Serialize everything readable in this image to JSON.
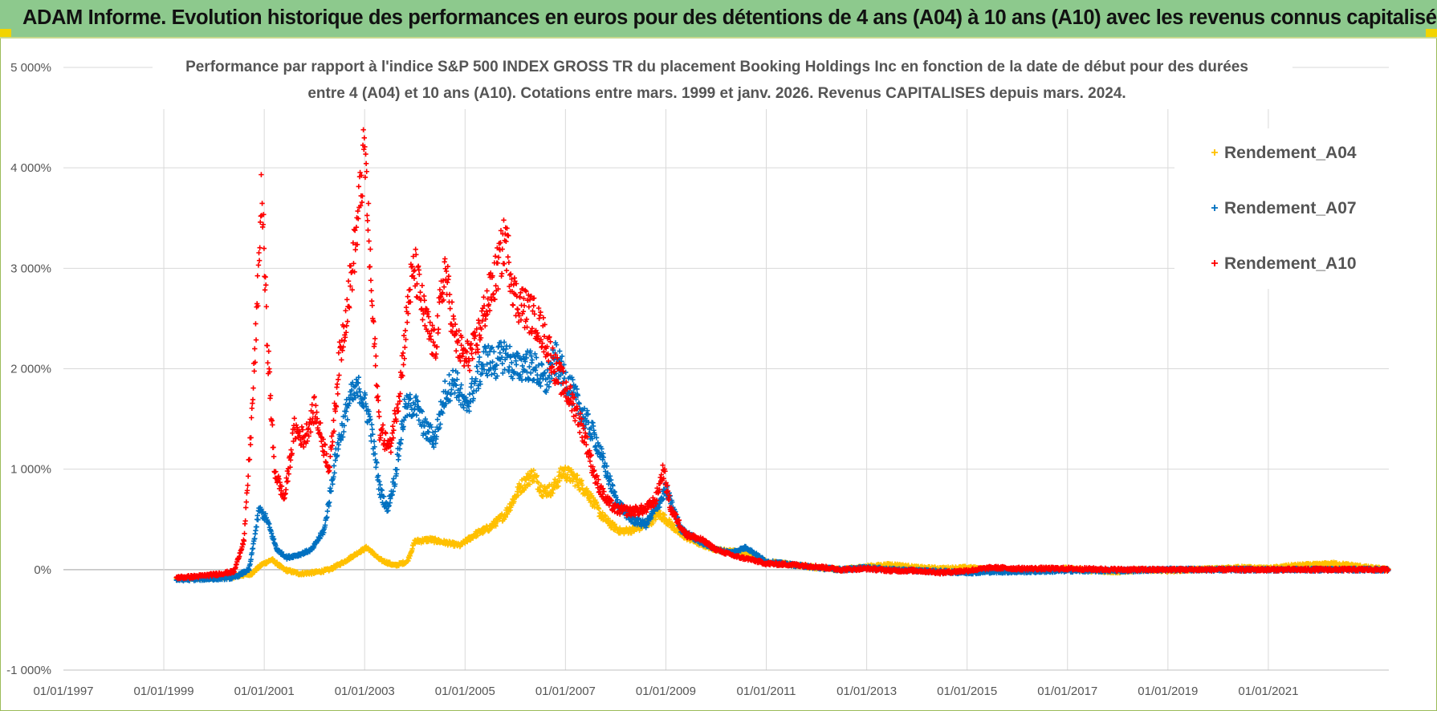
{
  "header": {
    "title": "ADAM Informe. Evolution historique des performances en euros pour des détentions de 4 ans (A04) à 10 ans (A10) avec les revenus connus capitalisés"
  },
  "colors": {
    "header_bg": "#8dc98d",
    "A04": "#ffc000",
    "A07": "#0070c0",
    "A10": "#ff0000",
    "grid": "#d9d9d9",
    "axis": "#bfbfbf"
  },
  "chart_data": {
    "type": "scatter",
    "title_line1": "Performance par rapport à l'indice S&P 500 INDEX GROSS TR  du placement Booking Holdings Inc en fonction de la date de début pour des durées",
    "title_line2": "entre 4 (A04) et 10 ans (A10).  Cotations entre mars. 1999 et janv. 2026.  Revenus CAPITALISES depuis mars. 2024.",
    "xlabel": "",
    "ylabel": "",
    "x_range": [
      1997.0,
      2023.4
    ],
    "ylim": [
      -1000,
      5000
    ],
    "y_ticks": [
      -1000,
      0,
      1000,
      2000,
      3000,
      4000,
      5000
    ],
    "y_tick_labels": [
      "-1 000%",
      "0%",
      "1 000%",
      "2 000%",
      "3 000%",
      "4 000%",
      "5 000%"
    ],
    "x_ticks": [
      1997,
      1999,
      2001,
      2003,
      2005,
      2007,
      2009,
      2011,
      2013,
      2015,
      2017,
      2019,
      2021
    ],
    "x_tick_labels": [
      "01/01/1997",
      "01/01/1999",
      "01/01/2001",
      "01/01/2003",
      "01/01/2005",
      "01/01/2007",
      "01/01/2009",
      "01/01/2011",
      "01/01/2013",
      "01/01/2015",
      "01/01/2017",
      "01/01/2019",
      "01/01/2021"
    ],
    "legend_position": "top-right",
    "series": [
      {
        "name": "Rendement_A04",
        "x": [
          1999.25,
          1999.6,
          2000.0,
          2000.4,
          2000.75,
          2000.95,
          2001.15,
          2001.4,
          2001.7,
          2002.0,
          2002.3,
          2002.6,
          2002.9,
          2003.05,
          2003.3,
          2003.6,
          2003.85,
          2004.0,
          2004.3,
          2004.6,
          2004.9,
          2005.2,
          2005.5,
          2005.8,
          2006.1,
          2006.35,
          2006.55,
          2006.75,
          2006.95,
          2007.2,
          2007.45,
          2007.7,
          2007.9,
          2008.1,
          2008.4,
          2008.7,
          2008.85,
          2009.0,
          2009.3,
          2009.7,
          2010.0,
          2010.4,
          2010.7,
          2011.0,
          2011.5,
          2012.0,
          2012.5,
          2013.0,
          2013.5,
          2014.0,
          2014.5,
          2015.0,
          2015.5,
          2016.0,
          2016.5,
          2017.0,
          2017.5,
          2018.0,
          2018.5,
          2019.0,
          2019.5,
          2020.0,
          2020.5,
          2021.0,
          2021.5,
          2022.0,
          2022.3,
          2022.7,
          2023.0,
          2023.4
        ],
        "values": [
          -90,
          -85,
          -80,
          -70,
          -40,
          50,
          100,
          0,
          -40,
          -30,
          0,
          80,
          180,
          220,
          100,
          40,
          80,
          280,
          300,
          270,
          240,
          350,
          420,
          550,
          820,
          950,
          780,
          800,
          980,
          900,
          760,
          550,
          450,
          380,
          400,
          480,
          560,
          500,
          350,
          250,
          200,
          180,
          150,
          80,
          50,
          20,
          0,
          30,
          50,
          20,
          10,
          20,
          0,
          -10,
          0,
          10,
          -10,
          -20,
          0,
          -10,
          0,
          10,
          20,
          10,
          40,
          50,
          60,
          40,
          20,
          0
        ]
      },
      {
        "name": "Rendement_A07",
        "x": [
          1999.25,
          1999.6,
          2000.0,
          2000.4,
          2000.7,
          2000.9,
          2001.05,
          2001.25,
          2001.45,
          2001.7,
          2001.95,
          2002.2,
          2002.45,
          2002.7,
          2002.9,
          2003.1,
          2003.3,
          2003.45,
          2003.6,
          2003.8,
          2004.0,
          2004.2,
          2004.4,
          2004.6,
          2004.8,
          2005.0,
          2005.2,
          2005.4,
          2005.6,
          2005.8,
          2006.0,
          2006.2,
          2006.4,
          2006.6,
          2006.8,
          2007.0,
          2007.2,
          2007.4,
          2007.6,
          2007.8,
          2008.0,
          2008.3,
          2008.6,
          2008.8,
          2009.0,
          2009.3,
          2009.6,
          2010.0,
          2010.3,
          2010.6,
          2011.0,
          2011.5,
          2012.0,
          2012.5,
          2013.0,
          2013.5,
          2014.0,
          2014.5,
          2015.0,
          2015.5,
          2016.0,
          2017.0,
          2018.0,
          2019.0,
          2020.0,
          2021.0,
          2022.0,
          2023.4
        ],
        "values": [
          -100,
          -95,
          -90,
          -80,
          0,
          600,
          500,
          200,
          120,
          150,
          200,
          400,
          1200,
          1700,
          1800,
          1500,
          800,
          600,
          900,
          1600,
          1650,
          1400,
          1300,
          1750,
          1900,
          1600,
          1850,
          2100,
          2050,
          2150,
          2000,
          2050,
          2000,
          1850,
          2100,
          1900,
          1700,
          1500,
          1300,
          1000,
          700,
          500,
          450,
          600,
          800,
          400,
          300,
          200,
          170,
          220,
          80,
          50,
          20,
          0,
          20,
          0,
          -10,
          -20,
          -30,
          -20,
          -20,
          -10,
          -10,
          0,
          0,
          0,
          0,
          0
        ]
      },
      {
        "name": "Rendement_A10",
        "x": [
          1999.25,
          1999.6,
          2000.0,
          2000.4,
          2000.6,
          2000.75,
          2000.85,
          2000.95,
          2001.05,
          2001.2,
          2001.4,
          2001.6,
          2001.8,
          2002.0,
          2002.3,
          2002.5,
          2002.7,
          2002.85,
          2003.0,
          2003.15,
          2003.3,
          2003.5,
          2003.7,
          2003.9,
          2004.0,
          2004.2,
          2004.4,
          2004.6,
          2004.8,
          2005.0,
          2005.2,
          2005.4,
          2005.6,
          2005.8,
          2006.0,
          2006.2,
          2006.4,
          2006.6,
          2006.8,
          2007.0,
          2007.2,
          2007.4,
          2007.6,
          2007.8,
          2008.0,
          2008.3,
          2008.6,
          2008.8,
          2008.95,
          2009.1,
          2009.4,
          2009.7,
          2010.0,
          2010.4,
          2010.7,
          2011.0,
          2011.5,
          2012.0,
          2012.5,
          2013.0,
          2013.5,
          2014.0,
          2014.5,
          2015.0,
          2015.5,
          2016.0,
          2017.0,
          2018.0,
          2019.0,
          2020.0,
          2021.0,
          2022.0,
          2023.4
        ],
        "values": [
          -80,
          -70,
          -50,
          -20,
          300,
          1500,
          2500,
          3800,
          2400,
          1000,
          700,
          1400,
          1300,
          1600,
          1000,
          2100,
          2800,
          3400,
          4200,
          2600,
          1400,
          1200,
          1800,
          2800,
          3000,
          2500,
          2200,
          3000,
          2300,
          2100,
          2200,
          2600,
          2900,
          3300,
          2700,
          2600,
          2500,
          2300,
          2000,
          1800,
          1600,
          1300,
          900,
          700,
          600,
          580,
          600,
          700,
          1000,
          600,
          350,
          300,
          200,
          130,
          100,
          60,
          50,
          30,
          0,
          10,
          -10,
          -10,
          -30,
          -10,
          20,
          10,
          10,
          0,
          0,
          0,
          0,
          0,
          0
        ]
      }
    ]
  }
}
